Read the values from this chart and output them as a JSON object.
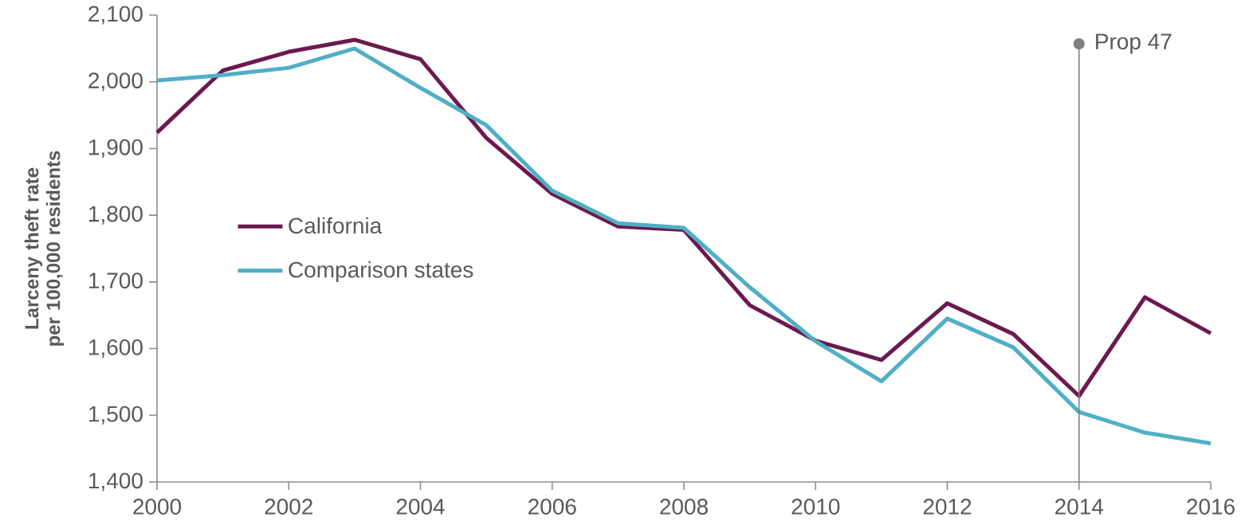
{
  "chart_data": {
    "type": "line",
    "ylabel": "Larceny theft rate per 100,000 residents",
    "x": [
      2000,
      2001,
      2002,
      2003,
      2004,
      2005,
      2006,
      2007,
      2008,
      2009,
      2010,
      2011,
      2012,
      2013,
      2014,
      2015,
      2016
    ],
    "series": [
      {
        "name": "California",
        "color": "#6b1a4f",
        "values": [
          1924,
          2017,
          2045,
          2063,
          2034,
          1916,
          1832,
          1783,
          1778,
          1665,
          1612,
          1583,
          1668,
          1622,
          1529,
          1677,
          1623
        ]
      },
      {
        "name": "Comparison states",
        "color": "#4fafc6",
        "values": [
          2002,
          2010,
          2021,
          2050,
          1991,
          1935,
          1837,
          1788,
          1781,
          1692,
          1611,
          1551,
          1645,
          1602,
          1505,
          1474,
          1458
        ]
      }
    ],
    "xlim": [
      2000,
      2016
    ],
    "xticks": [
      2000,
      2002,
      2004,
      2006,
      2008,
      2010,
      2012,
      2014,
      2016
    ],
    "ylim": [
      1400,
      2100
    ],
    "yticks": [
      {
        "value": 1400,
        "label": "1,400"
      },
      {
        "value": 1500,
        "label": "1,500"
      },
      {
        "value": 1600,
        "label": "1,600"
      },
      {
        "value": 1700,
        "label": "1,700"
      },
      {
        "value": 1800,
        "label": "1,800"
      },
      {
        "value": 1900,
        "label": "1,900"
      },
      {
        "value": 2000,
        "label": "2,000"
      },
      {
        "value": 2100,
        "label": "2,100"
      }
    ],
    "ref_lines": [
      {
        "axis": "x",
        "value": 2014,
        "label": "Prop 47",
        "color": "#7f7f7f"
      }
    ],
    "legend": "left",
    "grid": false,
    "marker": "none",
    "line_style": "solid"
  }
}
